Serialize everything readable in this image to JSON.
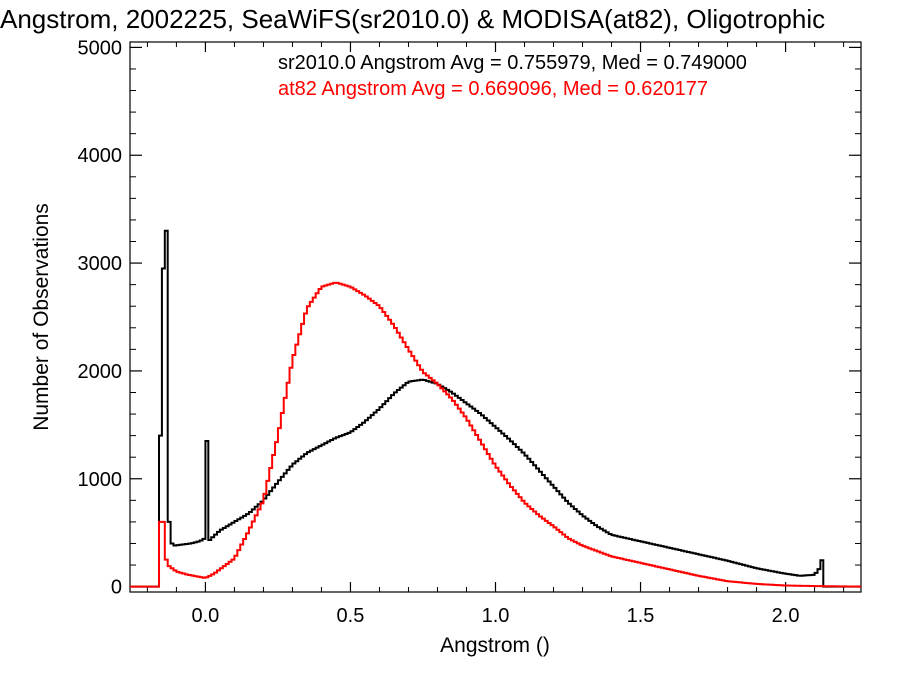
{
  "chart_data": {
    "type": "line",
    "title": "Angstrom, 2002225, SeaWiFS(sr2010.0) & MODISA(at82), Oligotrophic",
    "xlabel": "Angstrom ()",
    "ylabel": "Number of Observations",
    "xlim": [
      -0.26,
      2.26
    ],
    "ylim": [
      -50,
      5050
    ],
    "x_ticks": [
      0.0,
      0.5,
      1.0,
      1.5,
      2.0
    ],
    "x_tick_labels": [
      "0.0",
      "0.5",
      "1.0",
      "1.5",
      "2.0"
    ],
    "y_ticks": [
      0,
      1000,
      2000,
      3000,
      4000,
      5000
    ],
    "y_tick_labels": [
      "0",
      "1000",
      "2000",
      "3000",
      "4000",
      "5000"
    ],
    "grid": false,
    "annotations": [
      {
        "text": "sr2010.0 Angstrom Avg = 0.755979, Med = 0.749000",
        "color": "#000000"
      },
      {
        "text": "at82 Angstrom Avg = 0.669096, Med = 0.620177",
        "color": "#ff0000"
      }
    ],
    "series": [
      {
        "name": "sr2010.0",
        "color": "#000000",
        "points": [
          [
            -0.26,
            0
          ],
          [
            -0.16,
            0
          ],
          [
            -0.155,
            1400
          ],
          [
            -0.15,
            2000
          ],
          [
            -0.145,
            2950
          ],
          [
            -0.14,
            3900
          ],
          [
            -0.135,
            3300
          ],
          [
            -0.13,
            1700
          ],
          [
            -0.125,
            600
          ],
          [
            -0.12,
            420
          ],
          [
            -0.11,
            380
          ],
          [
            -0.08,
            390
          ],
          [
            -0.05,
            400
          ],
          [
            -0.02,
            420
          ],
          [
            0.0,
            450
          ],
          [
            0.005,
            1350
          ],
          [
            0.01,
            420
          ],
          [
            0.05,
            520
          ],
          [
            0.1,
            600
          ],
          [
            0.15,
            680
          ],
          [
            0.2,
            800
          ],
          [
            0.25,
            970
          ],
          [
            0.3,
            1130
          ],
          [
            0.35,
            1240
          ],
          [
            0.4,
            1310
          ],
          [
            0.45,
            1380
          ],
          [
            0.5,
            1430
          ],
          [
            0.55,
            1530
          ],
          [
            0.6,
            1650
          ],
          [
            0.65,
            1790
          ],
          [
            0.7,
            1900
          ],
          [
            0.75,
            1920
          ],
          [
            0.8,
            1880
          ],
          [
            0.85,
            1800
          ],
          [
            0.9,
            1700
          ],
          [
            0.95,
            1600
          ],
          [
            1.0,
            1480
          ],
          [
            1.05,
            1360
          ],
          [
            1.1,
            1230
          ],
          [
            1.15,
            1080
          ],
          [
            1.2,
            930
          ],
          [
            1.25,
            780
          ],
          [
            1.3,
            660
          ],
          [
            1.35,
            560
          ],
          [
            1.4,
            480
          ],
          [
            1.5,
            420
          ],
          [
            1.6,
            360
          ],
          [
            1.7,
            300
          ],
          [
            1.8,
            240
          ],
          [
            1.9,
            170
          ],
          [
            2.0,
            120
          ],
          [
            2.05,
            100
          ],
          [
            2.1,
            110
          ],
          [
            2.12,
            180
          ],
          [
            2.13,
            310
          ],
          [
            2.135,
            0
          ],
          [
            2.26,
            0
          ]
        ]
      },
      {
        "name": "at82",
        "color": "#ff0000",
        "points": [
          [
            -0.26,
            0
          ],
          [
            -0.16,
            0
          ],
          [
            -0.155,
            600
          ],
          [
            -0.15,
            900
          ],
          [
            -0.145,
            600
          ],
          [
            -0.14,
            300
          ],
          [
            -0.13,
            200
          ],
          [
            -0.1,
            140
          ],
          [
            -0.06,
            110
          ],
          [
            -0.02,
            90
          ],
          [
            0.0,
            80
          ],
          [
            0.03,
            120
          ],
          [
            0.07,
            200
          ],
          [
            0.1,
            260
          ],
          [
            0.15,
            520
          ],
          [
            0.2,
            800
          ],
          [
            0.25,
            1400
          ],
          [
            0.3,
            2100
          ],
          [
            0.35,
            2580
          ],
          [
            0.4,
            2780
          ],
          [
            0.45,
            2820
          ],
          [
            0.5,
            2780
          ],
          [
            0.55,
            2700
          ],
          [
            0.6,
            2600
          ],
          [
            0.65,
            2420
          ],
          [
            0.7,
            2200
          ],
          [
            0.75,
            1990
          ],
          [
            0.8,
            1880
          ],
          [
            0.85,
            1740
          ],
          [
            0.9,
            1560
          ],
          [
            0.95,
            1340
          ],
          [
            1.0,
            1120
          ],
          [
            1.05,
            940
          ],
          [
            1.1,
            780
          ],
          [
            1.15,
            660
          ],
          [
            1.2,
            560
          ],
          [
            1.25,
            450
          ],
          [
            1.3,
            380
          ],
          [
            1.35,
            330
          ],
          [
            1.4,
            280
          ],
          [
            1.5,
            220
          ],
          [
            1.6,
            160
          ],
          [
            1.7,
            100
          ],
          [
            1.8,
            50
          ],
          [
            1.9,
            25
          ],
          [
            2.0,
            10
          ],
          [
            2.1,
            5
          ],
          [
            2.26,
            0
          ]
        ]
      }
    ]
  }
}
